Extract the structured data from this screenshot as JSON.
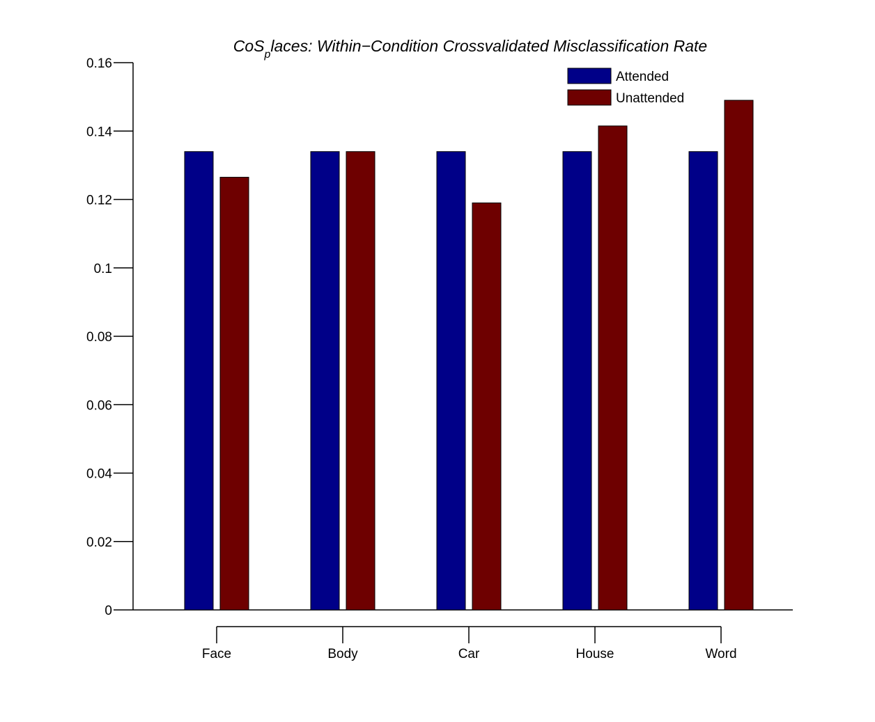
{
  "chart_data": {
    "type": "bar",
    "title": "CoS_places: Within−Condition Crossvalidated Misclassification Rate",
    "title_main": "CoS",
    "title_sub": "p",
    "title_rest": "laces: Within−Condition Crossvalidated Misclassification Rate",
    "xlabel": "",
    "ylabel": "",
    "categories": [
      "Face",
      "Body",
      "Car",
      "House",
      "Word"
    ],
    "series": [
      {
        "name": "Attended",
        "color": "#000088",
        "values": [
          0.134,
          0.134,
          0.134,
          0.134,
          0.134
        ]
      },
      {
        "name": "Unattended",
        "color": "#6e0000",
        "values": [
          0.1265,
          0.134,
          0.119,
          0.1415,
          0.149
        ]
      }
    ],
    "ylim": [
      0,
      0.16
    ],
    "yticks": [
      0,
      0.02,
      0.04,
      0.06,
      0.08,
      0.1,
      0.12,
      0.14,
      0.16
    ],
    "ytick_labels": [
      "0",
      "0.02",
      "0.04",
      "0.06",
      "0.08",
      "0.1",
      "0.12",
      "0.14",
      "0.16"
    ],
    "grid": false,
    "legend_position": "top-right"
  }
}
